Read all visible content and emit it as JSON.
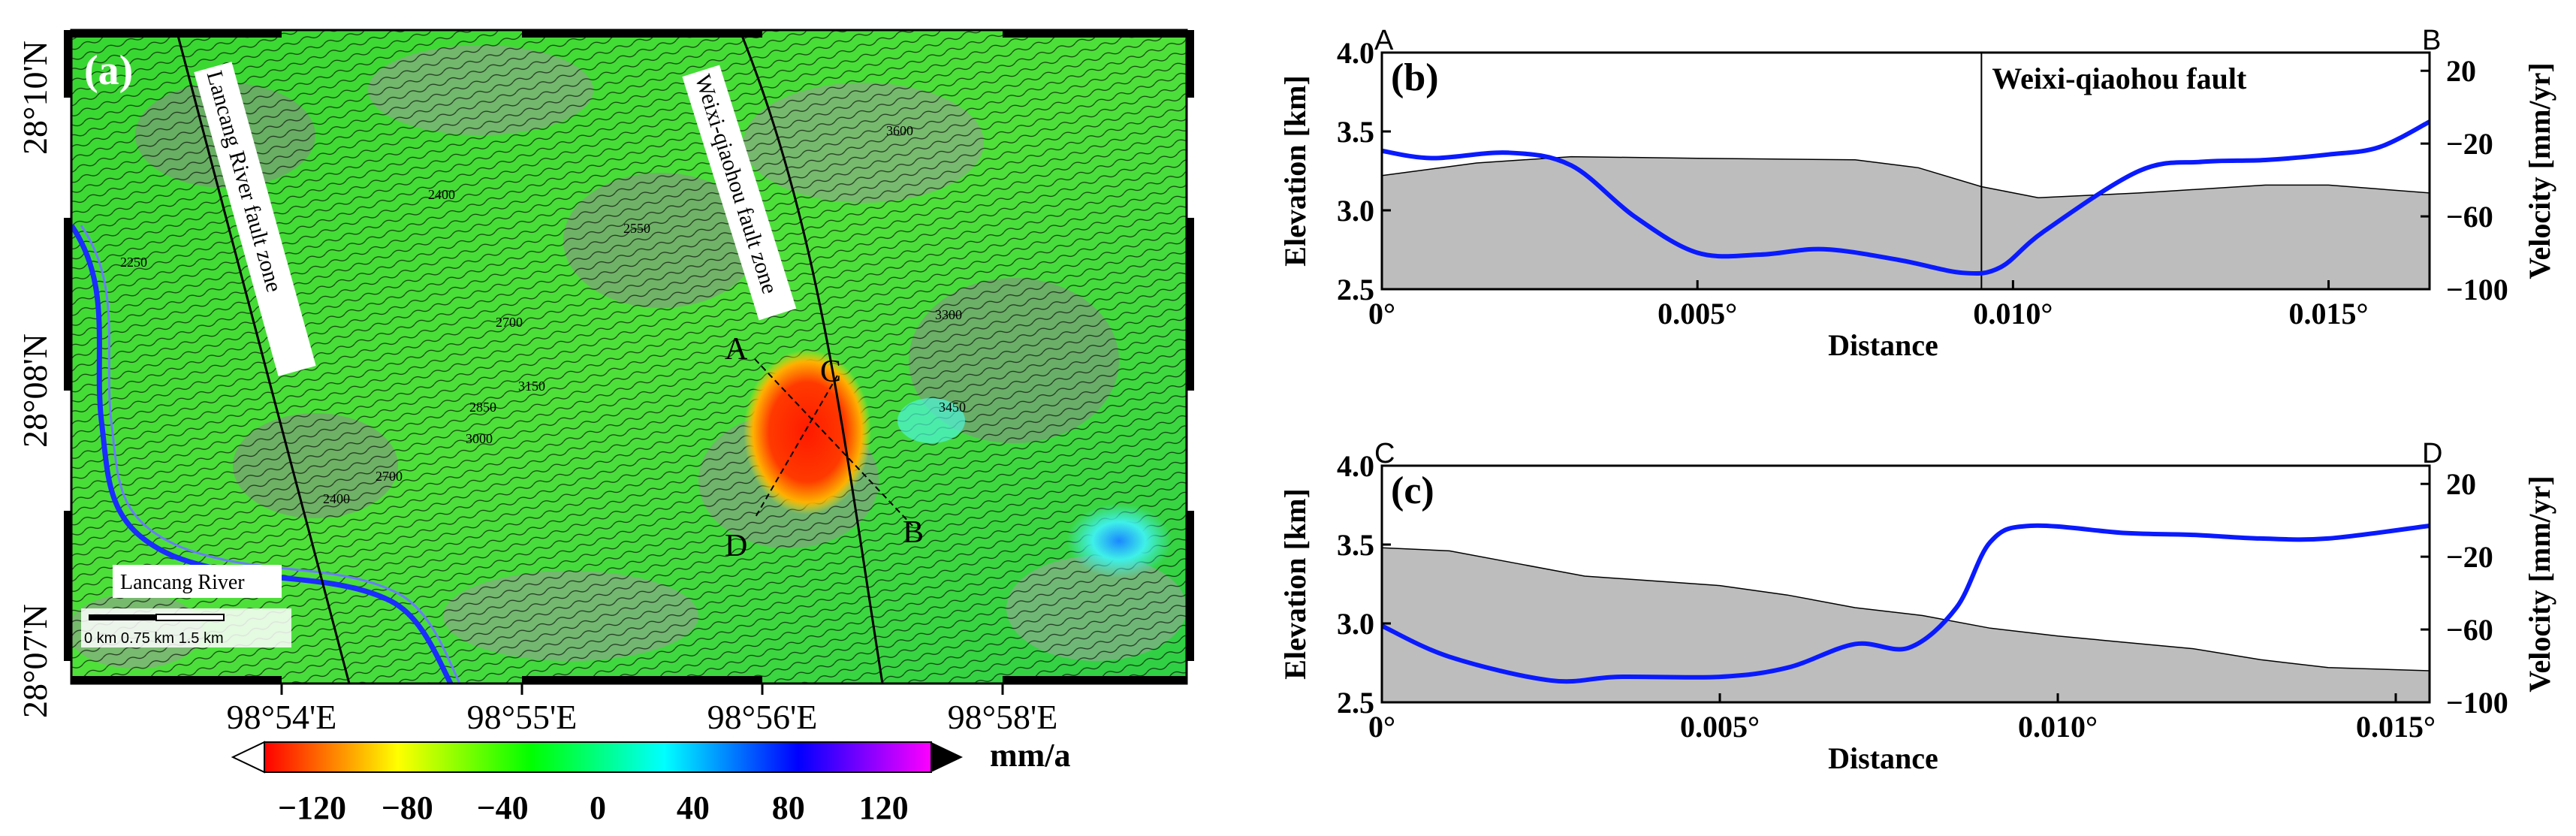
{
  "chart_data": [
    {
      "panel": "(a)",
      "type": "heatmap",
      "title": "",
      "xlabel": "",
      "ylabel": "",
      "x_ticks": [
        "98°54'E",
        "98°55'E",
        "98°56'E",
        "98°58'E"
      ],
      "y_ticks": [
        "28°10'N",
        "28°08'N",
        "28°07'N"
      ],
      "map_labels": {
        "lancang_fault": "Lancang River fault zone",
        "weixi_fault": "Weixi-qiaohou fault zone",
        "river": "Lancang River",
        "scale": "0 km   0.75 km   1.5 km",
        "profile_points": [
          "A",
          "B",
          "C",
          "D"
        ]
      },
      "contour_labels": [
        "2400",
        "2550",
        "2700",
        "2850",
        "3000",
        "3150",
        "3450",
        "3300",
        "3600",
        "2400",
        "2700",
        "2250"
      ],
      "colorbar": {
        "ticks": [
          "−120",
          "−80",
          "−40",
          "0",
          "40",
          "80",
          "120"
        ],
        "unit": "mm/a",
        "range": [
          -140,
          140
        ],
        "colors": [
          "#ff0000",
          "#ff7f00",
          "#ffff00",
          "#7fff00",
          "#00ff00",
          "#00ff7f",
          "#00ffff",
          "#007fff",
          "#0000ff",
          "#7f00ff",
          "#ff00ff"
        ]
      }
    },
    {
      "panel": "(b)",
      "type": "area",
      "title": "Weixi-qiaohou fault",
      "start_label": "A",
      "end_label": "B",
      "xlabel": "Distance",
      "ylabel": "Elevation [km]",
      "y2label": "Velocity [mm/yr]",
      "xlim": [
        0,
        0.0166
      ],
      "ylim": [
        2.5,
        4.0
      ],
      "y2lim": [
        -100,
        30
      ],
      "x_ticks": [
        0,
        0.005,
        0.01,
        0.015
      ],
      "x_tick_labels": [
        "0°",
        "0.005°",
        "0.010°",
        "0.015°"
      ],
      "y_ticks": [
        2.5,
        3.0,
        3.5,
        4.0
      ],
      "y_tick_labels": [
        "2.5",
        "3.0",
        "3.5",
        "4.0"
      ],
      "y2_ticks": [
        -100,
        -60,
        -20,
        20
      ],
      "y2_tick_labels": [
        "−100",
        "−60",
        "−20",
        "20"
      ],
      "fault_x": 0.0095,
      "elevation": {
        "x": [
          0,
          0.0015,
          0.003,
          0.005,
          0.0075,
          0.0085,
          0.0095,
          0.0104,
          0.012,
          0.014,
          0.015,
          0.0166
        ],
        "y": [
          3.22,
          3.3,
          3.34,
          3.33,
          3.32,
          3.27,
          3.15,
          3.08,
          3.11,
          3.16,
          3.16,
          3.11
        ]
      },
      "velocity": {
        "x": [
          0,
          0.0008,
          0.002,
          0.003,
          0.004,
          0.005,
          0.006,
          0.007,
          0.0082,
          0.0092,
          0.0098,
          0.0105,
          0.012,
          0.013,
          0.014,
          0.015,
          0.0158,
          0.0166
        ],
        "y": [
          -24,
          -28,
          -25,
          -32,
          -60,
          -80,
          -81,
          -78,
          -84,
          -91,
          -88,
          -68,
          -35,
          -30,
          -29,
          -26,
          -22,
          -8
        ]
      }
    },
    {
      "panel": "(c)",
      "type": "area",
      "title": "",
      "start_label": "C",
      "end_label": "D",
      "xlabel": "Distance",
      "ylabel": "Elevation [km]",
      "y2label": "Velocity [mm/yr]",
      "xlim": [
        0,
        0.0155
      ],
      "ylim": [
        2.5,
        4.0
      ],
      "y2lim": [
        -100,
        30
      ],
      "x_ticks": [
        0,
        0.005,
        0.01,
        0.015
      ],
      "x_tick_labels": [
        "0°",
        "0.005°",
        "0.010°",
        "0.015°"
      ],
      "y_ticks": [
        2.5,
        3.0,
        3.5,
        4.0
      ],
      "y_tick_labels": [
        "2.5",
        "3.0",
        "3.5",
        "4.0"
      ],
      "y2_ticks": [
        -100,
        -60,
        -20,
        20
      ],
      "y2_tick_labels": [
        "−100",
        "−60",
        "−20",
        "20"
      ],
      "elevation": {
        "x": [
          0,
          0.001,
          0.002,
          0.003,
          0.004,
          0.005,
          0.006,
          0.007,
          0.008,
          0.009,
          0.01,
          0.011,
          0.012,
          0.013,
          0.014,
          0.0155
        ],
        "y": [
          3.48,
          3.46,
          3.38,
          3.3,
          3.27,
          3.24,
          3.18,
          3.1,
          3.05,
          2.97,
          2.92,
          2.88,
          2.84,
          2.77,
          2.72,
          2.7
        ]
      },
      "velocity": {
        "x": [
          0,
          0.001,
          0.0025,
          0.0035,
          0.005,
          0.006,
          0.007,
          0.0078,
          0.0085,
          0.009,
          0.0096,
          0.011,
          0.012,
          0.013,
          0.014,
          0.0155
        ],
        "y": [
          -58,
          -75,
          -88,
          -86,
          -86,
          -81,
          -68,
          -70,
          -48,
          -12,
          -3,
          -7,
          -8,
          -10,
          -10,
          -3
        ]
      }
    }
  ]
}
